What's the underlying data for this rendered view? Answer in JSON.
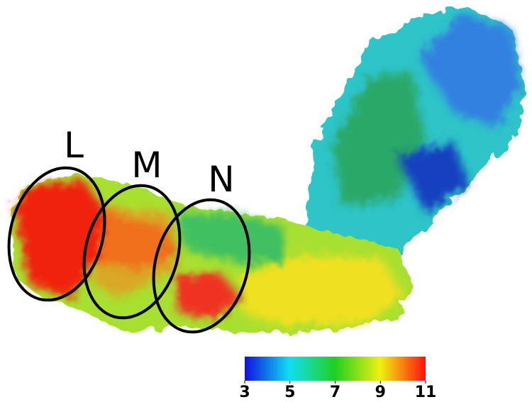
{
  "labels": [
    "L",
    "M",
    "N"
  ],
  "colorbar": {
    "ticks": [
      3,
      5,
      7,
      9,
      11
    ],
    "colors": [
      "#1010e0",
      "#10e0f0",
      "#20d020",
      "#f0f010",
      "#ff1010"
    ]
  }
}
